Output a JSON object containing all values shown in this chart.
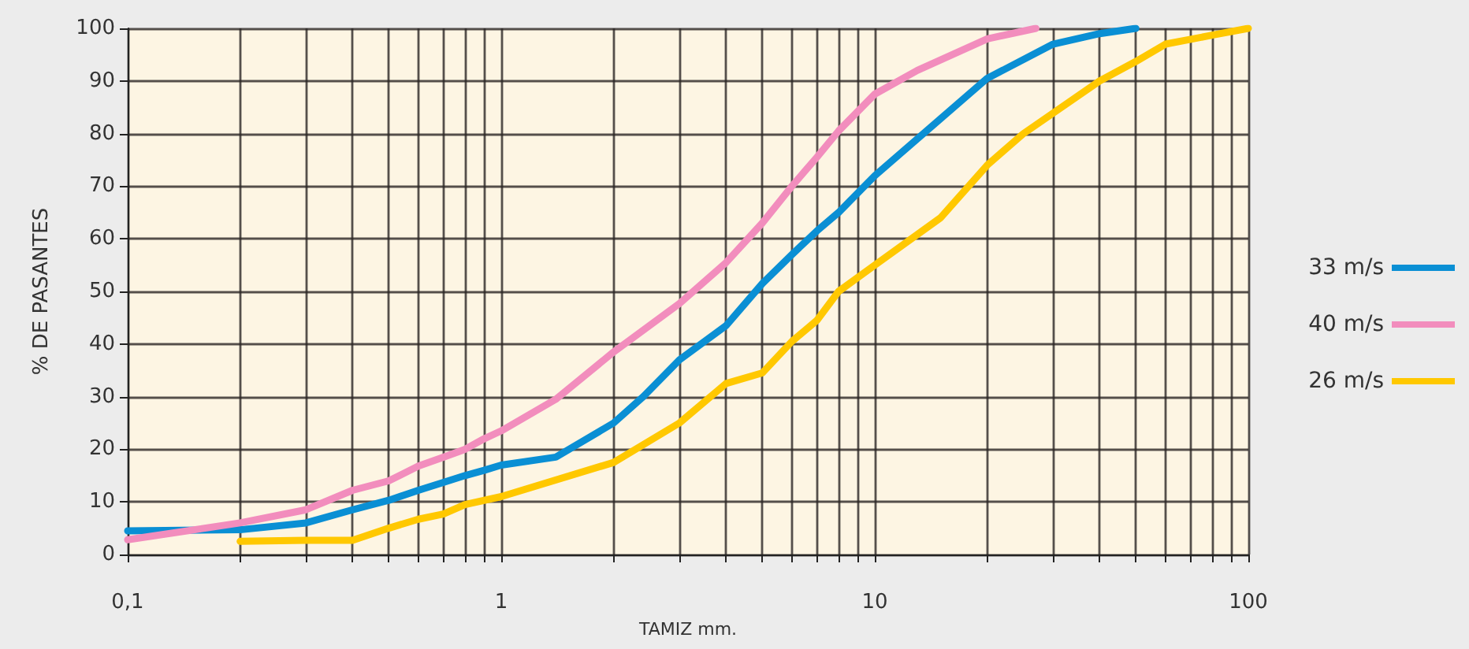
{
  "chart_data": {
    "type": "line",
    "xlabel": "TAMIZ mm.",
    "ylabel": "% DE PASANTES",
    "log": "x",
    "grid": true,
    "legend": "right",
    "marker": "none",
    "line_style": "solid",
    "xlim": [
      0.1,
      100
    ],
    "ylim": [
      0,
      100
    ],
    "xticks": [
      {
        "value": 0.1,
        "label": "0,1"
      },
      {
        "value": 0.2,
        "label": null
      },
      {
        "value": 0.3,
        "label": null
      },
      {
        "value": 0.4,
        "label": null
      },
      {
        "value": 0.5,
        "label": null
      },
      {
        "value": 0.6,
        "label": null
      },
      {
        "value": 0.7,
        "label": null
      },
      {
        "value": 0.8,
        "label": null
      },
      {
        "value": 0.9,
        "label": null
      },
      1,
      {
        "value": 2,
        "label": null
      },
      {
        "value": 3,
        "label": null
      },
      {
        "value": 4,
        "label": null
      },
      {
        "value": 5,
        "label": null
      },
      {
        "value": 6,
        "label": null
      },
      {
        "value": 7,
        "label": null
      },
      {
        "value": 8,
        "label": null
      },
      {
        "value": 9,
        "label": null
      },
      10,
      {
        "value": 20,
        "label": null
      },
      {
        "value": 30,
        "label": null
      },
      {
        "value": 40,
        "label": null
      },
      {
        "value": 50,
        "label": null
      },
      {
        "value": 60,
        "label": null
      },
      {
        "value": 70,
        "label": null
      },
      {
        "value": 80,
        "label": null
      },
      {
        "value": 90,
        "label": null
      },
      100
    ],
    "yticks": [
      0,
      10,
      20,
      30,
      40,
      50,
      60,
      70,
      80,
      90,
      100
    ],
    "series": [
      {
        "name": "33 m/s",
        "color": "#0a8fd4",
        "x": [
          0.1,
          0.2,
          0.3,
          0.4,
          0.5,
          0.6,
          0.7,
          0.8,
          0.9,
          1,
          1.4,
          2,
          2.4,
          3,
          4,
          5,
          6,
          7,
          8,
          10,
          20,
          30,
          40,
          50
        ],
        "values": [
          4.5,
          4.7,
          6,
          8.5,
          10.3,
          12.2,
          13.7,
          15,
          16,
          17,
          18.5,
          25,
          30,
          37,
          43.5,
          51.5,
          57,
          61.5,
          65,
          72,
          90.5,
          97,
          99,
          100
        ]
      },
      {
        "name": "40 m/s",
        "color": "#f28dbd",
        "x": [
          0.1,
          0.2,
          0.3,
          0.4,
          0.5,
          0.6,
          0.7,
          0.8,
          0.9,
          1,
          1.4,
          2,
          3,
          4,
          5,
          6,
          7,
          8,
          10,
          13,
          20,
          27
        ],
        "values": [
          2.8,
          6,
          8.5,
          12.2,
          14,
          16.8,
          18.5,
          20,
          22,
          23.5,
          29.5,
          38.5,
          47.7,
          55.5,
          63,
          70,
          75.5,
          80.5,
          87.5,
          92,
          98,
          100
        ]
      },
      {
        "name": "26 m/s",
        "color": "#ffc800",
        "x": [
          0.2,
          0.3,
          0.4,
          0.5,
          0.6,
          0.7,
          0.8,
          1,
          2,
          3,
          4,
          5,
          6,
          7,
          8,
          10,
          15,
          20,
          25,
          40,
          50,
          60,
          80,
          100
        ],
        "values": [
          2.5,
          2.7,
          2.7,
          5,
          6.7,
          7.7,
          9.5,
          11,
          17.5,
          25,
          32.5,
          34.5,
          40.5,
          44.5,
          50,
          55,
          64,
          74,
          80,
          90,
          93.7,
          97,
          98.7,
          100
        ]
      }
    ]
  }
}
